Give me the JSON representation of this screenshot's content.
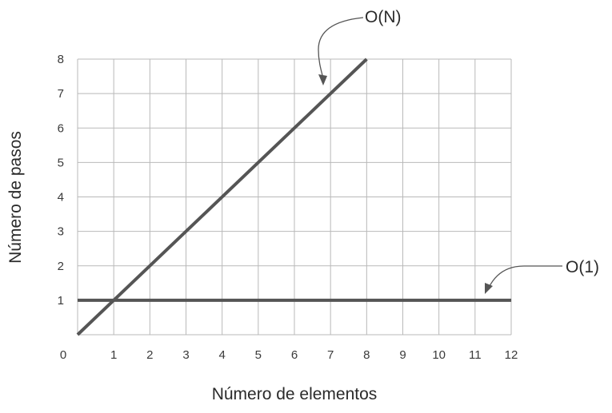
{
  "chart_data": {
    "type": "line",
    "title": "",
    "xlabel": "Número de elementos",
    "ylabel": "Número de pasos",
    "xlim": [
      0,
      12
    ],
    "ylim": [
      0,
      8
    ],
    "x_ticks": [
      0,
      1,
      2,
      3,
      4,
      5,
      6,
      7,
      8,
      9,
      10,
      11,
      12
    ],
    "y_ticks": [
      1,
      2,
      3,
      4,
      5,
      6,
      7,
      8
    ],
    "grid": true,
    "legend": "none",
    "series": [
      {
        "name": "O(N)",
        "color": "#555555",
        "x": [
          0,
          8
        ],
        "y": [
          0,
          8
        ]
      },
      {
        "name": "O(1)",
        "color": "#555555",
        "x": [
          0,
          12
        ],
        "y": [
          1,
          1
        ]
      }
    ],
    "annotations": [
      {
        "text": "O(N)",
        "points_to": [
          7,
          7.2
        ]
      },
      {
        "text": "O(1)",
        "points_to": [
          11.2,
          1.15
        ]
      }
    ]
  }
}
